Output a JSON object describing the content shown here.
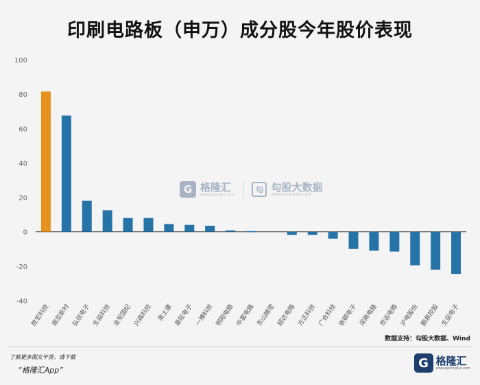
{
  "title": "印刷电路板（申万）成分股今年股价表现",
  "source": "数据支持：勾股大数据、Wind",
  "watermark": {
    "brand1": "格隆汇",
    "brand1_url": "www.gelonghui.com",
    "brand2": "勾股大数据",
    "brand2_url": "WWW.GOGUDATA.COM"
  },
  "footer": {
    "download_text": "了解更多图文干货，请下载",
    "app_text": "“格隆汇App”",
    "logo_mark": "G",
    "logo_name": "格隆汇",
    "logo_url": "www.gelonghui.com"
  },
  "colors": {
    "highlight": "#e6901e",
    "bar": "#2673a8",
    "axis": "#333333",
    "tick": "#666666"
  },
  "chart_data": {
    "type": "bar",
    "title": "印刷电路板（申万）成分股今年股价表现",
    "xlabel": "",
    "ylabel": "",
    "ylim": [
      -40,
      100
    ],
    "yticks": [
      -40,
      -20,
      0,
      20,
      40,
      60,
      80,
      100
    ],
    "grid": false,
    "categories": [
      "胜宏科技",
      "南亚新材",
      "弘信电子",
      "生益科技",
      "金安国纪",
      "兴森科技",
      "奥士康",
      "景旺电子",
      "一博科技",
      "明阳电路",
      "中富电路",
      "东山精密",
      "超达电路",
      "方正科技",
      "广合科技",
      "依顿电子",
      "深南电路",
      "世运电路",
      "沪电股份",
      "鹏鼎控股",
      "生益电子"
    ],
    "values": [
      81.5,
      67.5,
      18,
      12.5,
      8,
      8,
      4.5,
      4,
      3.5,
      0.8,
      0.4,
      0,
      -1.8,
      -1.8,
      -4,
      -10,
      -11,
      -11.5,
      -19.5,
      -22,
      -24.5
    ],
    "highlight_index": 0
  }
}
